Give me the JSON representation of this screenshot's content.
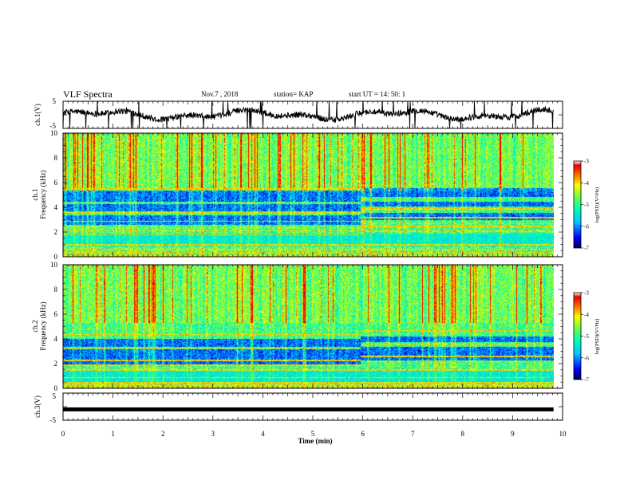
{
  "header": {
    "title": "VLF Spectra",
    "date": "Nov.7 , 2018",
    "station": "station= KAP",
    "start": "start UT = 14: 50: 1"
  },
  "chart_data": [
    {
      "id": "ch1-waveform",
      "type": "line",
      "ylabel": "ch.1(V)",
      "ylim": [
        -5,
        5
      ],
      "ytick_labels": [
        "5",
        "-5"
      ],
      "xlim": [
        0,
        10
      ],
      "color": "#000000",
      "noise_amplitude": 1.0
    },
    {
      "id": "ch1-spectrogram",
      "type": "heatmap",
      "ylabel": "ch.1\nFrequency (kHz)",
      "ylim": [
        0,
        10
      ],
      "ytick_labels": [
        "0",
        "2",
        "4",
        "6",
        "8",
        "10"
      ],
      "xlim": [
        0,
        10
      ],
      "data_end_min": 9.82,
      "colorbar": {
        "label": "log(PSD)(V²/Hz)",
        "range": [
          -7,
          -3
        ],
        "tick_labels": [
          "-3",
          "-4",
          "-5",
          "-6",
          "-7"
        ]
      },
      "features": {
        "band_change_min": 5.95,
        "blue_bands_khz": [
          [
            2.6,
            3.4
          ],
          [
            3.7,
            4.3
          ],
          [
            4.5,
            5.4
          ]
        ],
        "green_band_khz": [
          0.9,
          1.9
        ],
        "line_khz": [
          0.4,
          0.6,
          1.0,
          1.8,
          2.2,
          2.4,
          2.9,
          3.6,
          5.5
        ]
      }
    },
    {
      "id": "ch2-spectrogram",
      "type": "heatmap",
      "ylabel": "ch.2\nFrequency (kHz)",
      "ylim": [
        0,
        10
      ],
      "ytick_labels": [
        "0",
        "2",
        "4",
        "6",
        "8",
        "10"
      ],
      "xlim": [
        0,
        10
      ],
      "data_end_min": 9.82,
      "colorbar": {
        "label": "log(PSD)(V²/Hz)",
        "range": [
          -7,
          -3
        ],
        "tick_labels": [
          "-3",
          "-4",
          "-5",
          "-6",
          "-7"
        ]
      },
      "features": {
        "band_change_min": 5.95,
        "blue_bands_khz": [
          [
            1.9,
            3.2
          ],
          [
            3.4,
            4.0
          ]
        ],
        "green_band_khz": [
          0.4,
          1.6
        ],
        "line_khz": [
          0.3,
          0.5,
          0.9,
          1.5,
          1.9,
          2.3,
          3.3,
          4.4
        ]
      }
    },
    {
      "id": "ch3-waveform",
      "type": "line",
      "ylabel": "ch.3(V)",
      "ylim": [
        -5,
        5
      ],
      "ytick_labels": [
        "5",
        "-5"
      ],
      "xlim": [
        0,
        10
      ],
      "value": -1,
      "color": "#000000"
    }
  ],
  "xaxis": {
    "label": "Time (min)",
    "range": [
      0,
      10
    ],
    "tick_labels": [
      "0",
      "1",
      "2",
      "3",
      "4",
      "5",
      "6",
      "7",
      "8",
      "9",
      "10"
    ]
  },
  "colormap": [
    "#0000c8",
    "#0064ff",
    "#00c8ff",
    "#00ffb4",
    "#78ff3c",
    "#ffff00",
    "#ff9600",
    "#e60000"
  ]
}
